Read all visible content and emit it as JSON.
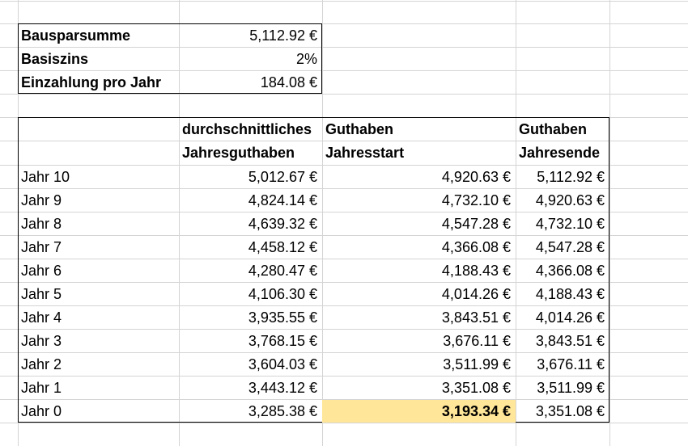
{
  "summary": [
    {
      "label": "Bausparsumme",
      "value": "5,112.92 €"
    },
    {
      "label": "Basiszins",
      "value": "2%"
    },
    {
      "label": "Einzahlung pro Jahr",
      "value": "184.08 €"
    }
  ],
  "table": {
    "headers": {
      "col1_line1": "durchschnittliches",
      "col1_line2": "Jahresguthaben",
      "col2_line1": "Guthaben",
      "col2_line2": "Jahresstart",
      "col3_line1": "Guthaben",
      "col3_line2": "Jahresende"
    },
    "rows": [
      {
        "year": "Jahr 10",
        "avg": "5,012.67 €",
        "start": "4,920.63 €",
        "end": "5,112.92 €"
      },
      {
        "year": "Jahr 9",
        "avg": "4,824.14 €",
        "start": "4,732.10 €",
        "end": "4,920.63 €"
      },
      {
        "year": "Jahr 8",
        "avg": "4,639.32 €",
        "start": "4,547.28 €",
        "end": "4,732.10 €"
      },
      {
        "year": "Jahr 7",
        "avg": "4,458.12 €",
        "start": "4,366.08 €",
        "end": "4,547.28 €"
      },
      {
        "year": "Jahr 6",
        "avg": "4,280.47 €",
        "start": "4,188.43 €",
        "end": "4,366.08 €"
      },
      {
        "year": "Jahr 5",
        "avg": "4,106.30 €",
        "start": "4,014.26 €",
        "end": "4,188.43 €"
      },
      {
        "year": "Jahr 4",
        "avg": "3,935.55 €",
        "start": "3,843.51 €",
        "end": "4,014.26 €"
      },
      {
        "year": "Jahr 3",
        "avg": "3,768.15 €",
        "start": "3,676.11 €",
        "end": "3,843.51 €"
      },
      {
        "year": "Jahr 2",
        "avg": "3,604.03 €",
        "start": "3,511.99 €",
        "end": "3,676.11 €"
      },
      {
        "year": "Jahr 1",
        "avg": "3,443.12 €",
        "start": "3,351.08 €",
        "end": "3,511.99 €"
      },
      {
        "year": "Jahr 0",
        "avg": "3,285.38 €",
        "start": "3,193.34 €",
        "end": "3,351.08 €"
      }
    ]
  },
  "colors": {
    "gridline": "#d4d4d4",
    "highlight": "#ffe699",
    "border": "#000000"
  }
}
